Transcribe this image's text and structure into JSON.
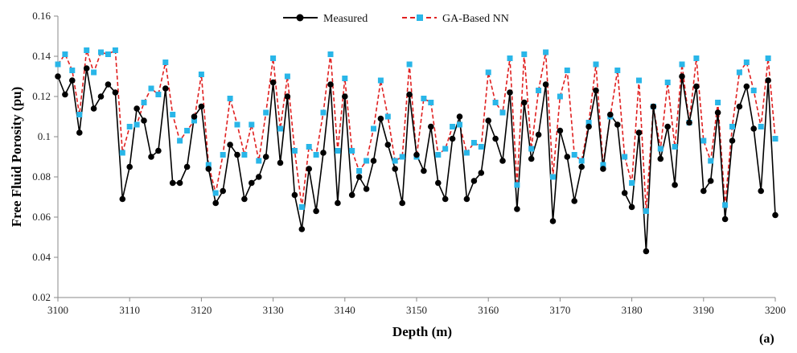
{
  "chart_data": {
    "type": "line",
    "title": "",
    "xlabel": "Depth (m)",
    "ylabel": "Free Fluid Porosity (pu)",
    "panel_label": "(a)",
    "xlim": [
      3100,
      3200
    ],
    "ylim": [
      0.02,
      0.16
    ],
    "xticks": [
      3100,
      3110,
      3120,
      3130,
      3140,
      3150,
      3160,
      3170,
      3180,
      3190,
      3200
    ],
    "yticks": [
      0.02,
      0.04,
      0.06,
      0.08,
      0.1,
      0.12,
      0.14,
      0.16
    ],
    "ytick_labels": [
      "0.02",
      "0.04",
      "0.06",
      "0.08",
      "0.1",
      "0.12",
      "0.14",
      "0.16"
    ],
    "grid": false,
    "legend_position": "top-center",
    "x": [
      3100,
      3101,
      3102,
      3103,
      3104,
      3105,
      3106,
      3107,
      3108,
      3109,
      3110,
      3111,
      3112,
      3113,
      3114,
      3115,
      3116,
      3117,
      3118,
      3119,
      3120,
      3121,
      3122,
      3123,
      3124,
      3125,
      3126,
      3127,
      3128,
      3129,
      3130,
      3131,
      3132,
      3133,
      3134,
      3135,
      3136,
      3137,
      3138,
      3139,
      3140,
      3141,
      3142,
      3143,
      3144,
      3145,
      3146,
      3147,
      3148,
      3149,
      3150,
      3151,
      3152,
      3153,
      3154,
      3155,
      3156,
      3157,
      3158,
      3159,
      3160,
      3161,
      3162,
      3163,
      3164,
      3165,
      3166,
      3167,
      3168,
      3169,
      3170,
      3171,
      3172,
      3173,
      3174,
      3175,
      3176,
      3177,
      3178,
      3179,
      3180,
      3181,
      3182,
      3183,
      3184,
      3185,
      3186,
      3187,
      3188,
      3189,
      3190,
      3191,
      3192,
      3193,
      3194,
      3195,
      3196,
      3197,
      3198,
      3199,
      3200
    ],
    "series": [
      {
        "name": "Measured",
        "color": "#000000",
        "style": "solid-circle",
        "values": [
          0.13,
          0.121,
          0.128,
          0.102,
          0.134,
          0.114,
          0.12,
          0.126,
          0.122,
          0.069,
          0.085,
          0.114,
          0.108,
          0.09,
          0.093,
          0.124,
          0.077,
          0.077,
          0.085,
          0.11,
          0.115,
          0.084,
          0.067,
          0.073,
          0.096,
          0.091,
          0.069,
          0.077,
          0.08,
          0.09,
          0.127,
          0.087,
          0.12,
          0.071,
          0.054,
          0.084,
          0.063,
          0.092,
          0.126,
          0.067,
          0.12,
          0.071,
          0.08,
          0.074,
          0.088,
          0.109,
          0.096,
          0.084,
          0.067,
          0.121,
          0.091,
          0.083,
          0.105,
          0.077,
          0.069,
          0.099,
          0.11,
          0.069,
          0.078,
          0.082,
          0.108,
          0.099,
          0.088,
          0.122,
          0.064,
          0.117,
          0.089,
          0.101,
          0.126,
          0.058,
          0.103,
          0.09,
          0.068,
          0.085,
          0.105,
          0.123,
          0.084,
          0.111,
          0.106,
          0.072,
          0.065,
          0.102,
          0.043,
          0.115,
          0.089,
          0.105,
          0.076,
          0.13,
          0.107,
          0.125,
          0.073,
          0.078,
          0.112,
          0.059,
          0.098,
          0.115,
          0.125,
          0.104,
          0.073,
          0.128,
          0.061
        ]
      },
      {
        "name": "GA-Based NN",
        "color": "#e02020",
        "marker_color": "#29b6e8",
        "style": "dashed-square",
        "values": [
          0.136,
          0.141,
          0.133,
          0.111,
          0.143,
          0.132,
          0.142,
          0.141,
          0.143,
          0.092,
          0.105,
          0.106,
          0.117,
          0.124,
          0.121,
          0.137,
          0.111,
          0.098,
          0.103,
          0.108,
          0.131,
          0.086,
          0.072,
          0.091,
          0.119,
          0.106,
          0.091,
          0.106,
          0.088,
          0.112,
          0.139,
          0.104,
          0.13,
          0.093,
          0.065,
          0.095,
          0.091,
          0.112,
          0.141,
          0.093,
          0.129,
          0.093,
          0.083,
          0.088,
          0.104,
          0.128,
          0.11,
          0.088,
          0.09,
          0.136,
          0.09,
          0.119,
          0.117,
          0.091,
          0.094,
          0.105,
          0.106,
          0.092,
          0.097,
          0.095,
          0.132,
          0.117,
          0.112,
          0.139,
          0.076,
          0.141,
          0.094,
          0.123,
          0.142,
          0.08,
          0.12,
          0.133,
          0.091,
          0.088,
          0.107,
          0.136,
          0.086,
          0.11,
          0.133,
          0.09,
          0.077,
          0.128,
          0.063,
          0.115,
          0.094,
          0.127,
          0.095,
          0.136,
          0.107,
          0.139,
          0.098,
          0.088,
          0.117,
          0.066,
          0.105,
          0.132,
          0.137,
          0.123,
          0.105,
          0.139,
          0.099
        ]
      }
    ]
  }
}
